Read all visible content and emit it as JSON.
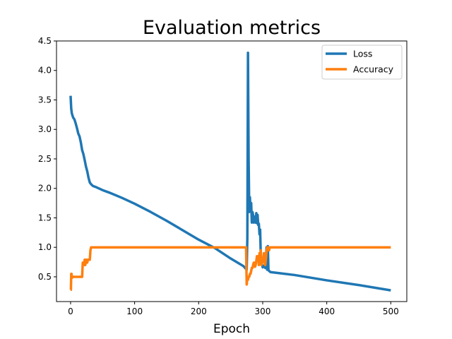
{
  "chart_data": {
    "type": "line",
    "title": "Evaluation metrics",
    "xlabel": "Epoch",
    "ylabel": "",
    "xlim": [
      -22,
      525
    ],
    "ylim": [
      0.08,
      4.5
    ],
    "xticks": [
      0,
      100,
      200,
      300,
      400,
      500
    ],
    "yticks": [
      0.5,
      1.0,
      1.5,
      2.0,
      2.5,
      3.0,
      3.5,
      4.0,
      4.5
    ],
    "xtick_labels": [
      "0",
      "100",
      "200",
      "300",
      "400",
      "500"
    ],
    "ytick_labels": [
      "0.5",
      "1.0",
      "1.5",
      "2.0",
      "2.5",
      "3.0",
      "3.5",
      "4.0",
      "4.5"
    ],
    "grid": false,
    "legend_position": "top-right",
    "series": [
      {
        "name": "Loss",
        "color": "#1f77b4",
        "x": [
          0,
          1,
          2,
          4,
          6,
          8,
          10,
          12,
          14,
          16,
          18,
          20,
          22,
          24,
          26,
          28,
          30,
          32,
          35,
          40,
          50,
          60,
          80,
          100,
          125,
          150,
          175,
          200,
          225,
          250,
          270,
          275,
          276,
          277,
          278,
          279,
          280,
          281,
          282,
          283,
          284,
          285,
          286,
          287,
          288,
          289,
          290,
          291,
          292,
          293,
          294,
          295,
          296,
          297,
          298,
          299,
          300,
          302,
          304,
          306,
          307,
          308,
          309,
          310,
          312,
          320,
          350,
          400,
          450,
          500
        ],
        "y": [
          3.57,
          3.35,
          3.27,
          3.2,
          3.17,
          3.1,
          3.02,
          2.93,
          2.88,
          2.78,
          2.65,
          2.58,
          2.48,
          2.37,
          2.29,
          2.18,
          2.1,
          2.07,
          2.04,
          2.02,
          1.97,
          1.93,
          1.84,
          1.74,
          1.6,
          1.45,
          1.29,
          1.13,
          0.99,
          0.81,
          0.68,
          0.62,
          1.15,
          4.3,
          2.5,
          1.6,
          1.85,
          1.62,
          1.75,
          1.42,
          1.6,
          1.55,
          1.42,
          1.52,
          1.48,
          1.42,
          1.58,
          1.41,
          1.55,
          1.38,
          1.4,
          1.22,
          1.3,
          0.85,
          0.74,
          0.7,
          0.66,
          0.69,
          0.65,
          1.0,
          0.62,
          1.02,
          0.61,
          0.6,
          0.58,
          0.57,
          0.53,
          0.44,
          0.36,
          0.27
        ]
      },
      {
        "name": "Accuracy",
        "color": "#ff7f0e",
        "x": [
          0,
          0.5,
          1,
          1.5,
          2,
          3,
          5,
          10,
          15,
          18,
          19,
          20,
          21,
          22,
          23,
          24,
          25,
          26,
          27,
          28,
          29,
          30,
          31,
          32,
          35,
          100,
          200,
          274,
          275,
          276,
          277,
          278,
          279,
          280,
          281,
          282,
          283,
          284,
          285,
          286,
          287,
          288,
          289,
          290,
          291,
          292,
          293,
          294,
          295,
          296,
          297,
          298,
          299,
          300,
          301,
          302,
          303,
          304,
          305,
          306,
          307,
          308,
          309,
          310,
          311,
          312,
          320,
          400,
          500
        ],
        "y": [
          0.28,
          0.28,
          0.55,
          0.55,
          0.48,
          0.5,
          0.5,
          0.5,
          0.5,
          0.5,
          0.74,
          0.74,
          0.7,
          0.79,
          0.7,
          0.79,
          0.79,
          0.74,
          0.79,
          0.79,
          0.79,
          0.79,
          0.95,
          1.0,
          1.0,
          1.0,
          1.0,
          1.0,
          0.37,
          0.47,
          0.45,
          0.5,
          0.5,
          0.55,
          0.55,
          0.6,
          0.65,
          0.65,
          0.7,
          0.74,
          0.74,
          0.67,
          0.7,
          0.77,
          0.85,
          0.78,
          0.85,
          0.7,
          0.9,
          0.8,
          0.95,
          0.7,
          0.74,
          0.75,
          0.8,
          0.9,
          0.75,
          0.7,
          0.8,
          0.95,
          1.0,
          0.95,
          1.0,
          0.95,
          1.0,
          1.0,
          1.0,
          1.0,
          1.0
        ]
      }
    ]
  }
}
